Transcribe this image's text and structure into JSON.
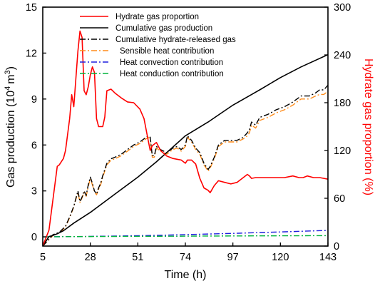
{
  "chart_data": {
    "type": "line",
    "xlabel": "Time (h)",
    "ylabel_left": "Gas production (10",
    "ylabel_left_sup": "4",
    "ylabel_left_unit": "m",
    "ylabel_left_sup2": "3",
    "ylabel_left_close": ")",
    "ylabel_right": "Hydrate gas proportion (%)",
    "xlim": [
      5,
      143
    ],
    "ylim_left": [
      -0.6,
      15
    ],
    "ylim_right": [
      0,
      300
    ],
    "x_ticks": [
      "5",
      "28",
      "51",
      "74",
      "97",
      "120",
      "143"
    ],
    "y_left_ticks": [
      "0",
      "3",
      "6",
      "9",
      "12",
      "15"
    ],
    "y_right_ticks": [
      "0",
      "60",
      "120",
      "180",
      "240",
      "300"
    ],
    "legend_position": "top",
    "colors": {
      "hydrate_prop": "#ff0000",
      "cumulative": "#000000",
      "hydrate_released": "#000000",
      "sensible": "#ff8c1a",
      "convection": "#1f1fdd",
      "conduction": "#00b43c",
      "right_axis": "#ff0000"
    },
    "series": [
      {
        "name": "Hydrate gas proportion",
        "axis": "right",
        "style": "solid",
        "color": "#ff0000",
        "x": [
          5,
          8,
          10,
          12,
          13,
          15,
          16,
          17,
          18,
          19,
          20,
          21,
          22,
          23,
          24,
          25,
          26,
          27,
          28,
          29,
          30,
          31,
          32,
          33,
          34,
          35,
          36,
          37,
          38,
          40,
          43,
          46,
          49,
          52,
          54,
          56,
          57,
          58,
          60,
          62,
          65,
          68,
          70,
          72,
          74,
          75,
          77,
          79,
          81,
          83,
          85,
          86,
          88,
          90,
          93,
          96,
          99,
          102,
          104,
          105,
          106,
          108,
          110,
          114,
          118,
          122,
          126,
          129,
          131,
          133,
          136,
          139,
          143
        ],
        "y": [
          0,
          20,
          60,
          100,
          102,
          110,
          120,
          140,
          160,
          190,
          175,
          210,
          245,
          270,
          262,
          195,
          190,
          200,
          215,
          225,
          218,
          160,
          150,
          150,
          150,
          162,
          195,
          196,
          197,
          192,
          186,
          181,
          180,
          172,
          160,
          133,
          120,
          126,
          130,
          120,
          113,
          110,
          109,
          108,
          104,
          108,
          108,
          103,
          85,
          73,
          70,
          67,
          76,
          82,
          80,
          78,
          80,
          86,
          90,
          88,
          85,
          86,
          86,
          86,
          86,
          86,
          88,
          86,
          86,
          88,
          86,
          86,
          84
        ]
      },
      {
        "name": "Cumulative gas production",
        "axis": "left",
        "style": "solid",
        "color": "#000000",
        "x": [
          5,
          8,
          10,
          12,
          15,
          20,
          28,
          40,
          51,
          60,
          74,
          85,
          97,
          110,
          120,
          130,
          143
        ],
        "y": [
          -0.6,
          0.02,
          0.1,
          0.2,
          0.4,
          0.9,
          1.6,
          2.8,
          3.9,
          4.9,
          6.6,
          7.5,
          8.6,
          9.6,
          10.4,
          11.1,
          11.9
        ]
      },
      {
        "name": "Cumulative hydrate-released gas",
        "axis": "left",
        "style": "dashdot",
        "color": "#000000",
        "x": [
          5,
          10,
          13,
          16,
          18,
          20,
          21,
          22,
          23,
          24,
          25,
          26,
          27,
          28,
          29,
          30,
          31,
          32,
          33,
          34,
          36,
          38,
          40,
          43,
          46,
          49,
          52,
          54,
          56,
          57,
          58,
          59,
          60,
          62,
          65,
          68,
          70,
          72,
          74,
          75,
          77,
          79,
          81,
          83,
          85,
          86,
          88,
          90,
          93,
          96,
          99,
          102,
          104,
          105,
          106,
          108,
          110,
          114,
          118,
          122,
          126,
          130,
          134,
          137,
          139,
          141,
          143
        ],
        "y": [
          -0.6,
          0.15,
          0.3,
          0.7,
          1.3,
          2.0,
          2.5,
          3.0,
          2.3,
          2.6,
          3.0,
          2.7,
          3.4,
          3.9,
          3.5,
          3.0,
          2.8,
          3.2,
          3.5,
          4.0,
          4.8,
          5.1,
          5.2,
          5.4,
          5.7,
          6.0,
          6.2,
          6.4,
          6.6,
          6.5,
          5.3,
          5.3,
          5.9,
          5.7,
          5.5,
          5.8,
          5.9,
          5.7,
          6.0,
          6.6,
          6.3,
          5.8,
          5.5,
          4.8,
          4.4,
          4.6,
          5.2,
          6.0,
          6.3,
          6.3,
          6.3,
          6.5,
          6.8,
          7.0,
          7.5,
          7.3,
          7.8,
          8.0,
          8.3,
          8.5,
          8.8,
          9.2,
          9.2,
          9.4,
          9.6,
          9.6,
          9.9
        ]
      },
      {
        "name": "Sensible heat contribution",
        "axis": "left",
        "style": "dashdot",
        "color": "#ff8c1a",
        "x": [
          5,
          10,
          13,
          16,
          18,
          20,
          21,
          22,
          23,
          24,
          25,
          26,
          27,
          28,
          29,
          30,
          31,
          32,
          33,
          34,
          36,
          38,
          40,
          43,
          46,
          49,
          52,
          54,
          56,
          57,
          58,
          59,
          60,
          62,
          65,
          68,
          70,
          72,
          74,
          75,
          77,
          79,
          81,
          83,
          85,
          86,
          88,
          90,
          93,
          96,
          99,
          102,
          104,
          105,
          106,
          108,
          110,
          114,
          118,
          122,
          126,
          130,
          134,
          137,
          139,
          141,
          143
        ],
        "y": [
          -0.6,
          0.1,
          0.25,
          0.65,
          1.25,
          1.95,
          2.45,
          2.9,
          2.25,
          2.55,
          2.9,
          2.65,
          3.3,
          3.8,
          3.4,
          2.95,
          2.75,
          3.1,
          3.4,
          3.9,
          4.7,
          5.0,
          5.1,
          5.3,
          5.6,
          5.9,
          6.1,
          6.3,
          6.5,
          6.4,
          5.2,
          5.2,
          5.8,
          5.6,
          5.4,
          5.7,
          5.8,
          5.6,
          5.9,
          6.5,
          6.2,
          5.7,
          5.4,
          4.7,
          4.3,
          4.5,
          5.1,
          5.9,
          6.2,
          6.2,
          6.2,
          6.4,
          6.6,
          6.8,
          7.3,
          7.1,
          7.6,
          7.8,
          8.1,
          8.3,
          8.6,
          9.0,
          9.0,
          9.2,
          9.3,
          9.3,
          9.5
        ]
      },
      {
        "name": "Heat convection contribution",
        "axis": "left",
        "style": "dashdot",
        "color": "#1f1fdd",
        "x": [
          5,
          20,
          40,
          60,
          80,
          100,
          120,
          143
        ],
        "y": [
          0.0,
          0.02,
          0.05,
          0.1,
          0.17,
          0.24,
          0.32,
          0.42
        ]
      },
      {
        "name": "Heat conduction contribution",
        "axis": "left",
        "style": "dashdot",
        "color": "#00b43c",
        "x": [
          5,
          20,
          40,
          60,
          80,
          100,
          120,
          143
        ],
        "y": [
          0.0,
          0.02,
          0.03,
          0.04,
          0.05,
          0.06,
          0.07,
          0.08
        ]
      }
    ]
  }
}
